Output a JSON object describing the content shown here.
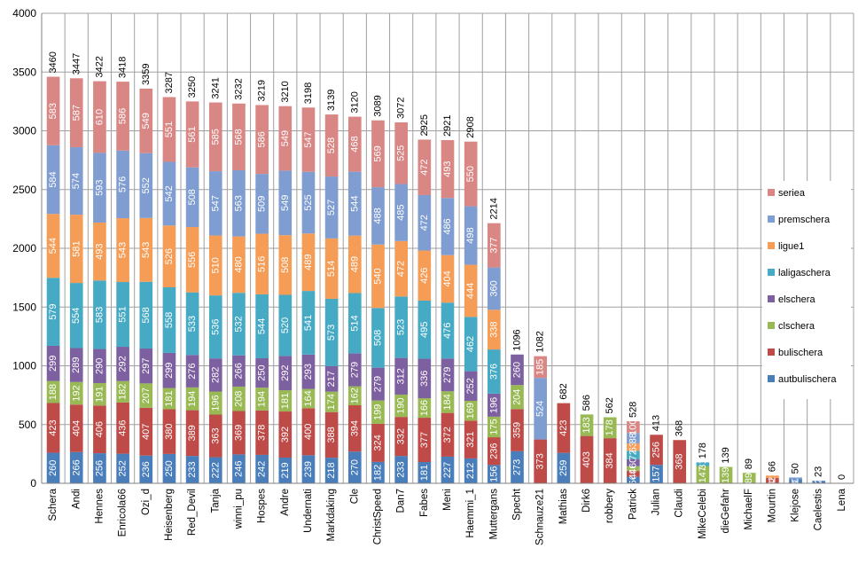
{
  "chart_data": {
    "type": "bar",
    "stacked": true,
    "ylim": [
      0,
      4000
    ],
    "yticks": [
      0,
      500,
      1000,
      1500,
      2000,
      2500,
      3000,
      3500,
      4000
    ],
    "grid": true,
    "legend_position": "right",
    "categories": [
      "Schera",
      "Andi",
      "Hennes",
      "Enricola66",
      "Ozi_d",
      "Heisenberg",
      "Red_Devil",
      "Tanja",
      "winni_pu",
      "Hospes",
      "Andre",
      "Undernati",
      "Markdaking",
      "Cle",
      "ChristSpeed",
      "Dan7",
      "Fabes",
      "Meni",
      "Haemmi_1",
      "Muttergans",
      "Specht",
      "Schnauze21",
      "Mathias",
      "Dirk6",
      "robbery",
      "Patrick",
      "Julian",
      "Claudi",
      "MikeCelebi",
      "dieGefahr",
      "MichaelF",
      "Mourtin",
      "Klejose",
      "Caelestis",
      "Lena"
    ],
    "series": [
      {
        "name": "autbulischera",
        "color": "#4a7ebb",
        "values": [
          260,
          266,
          256,
          252,
          236,
          250,
          233,
          222,
          246,
          242,
          219,
          239,
          218,
          270,
          182,
          233,
          181,
          227,
          212,
          156,
          273,
          0,
          259,
          0,
          0,
          56,
          157,
          0,
          0,
          0,
          0,
          0,
          37,
          21,
          0
        ]
      },
      {
        "name": "bulischera",
        "color": "#be4b48",
        "values": [
          423,
          404,
          406,
          436,
          407,
          380,
          389,
          363,
          369,
          378,
          392,
          400,
          388,
          394,
          324,
          332,
          377,
          372,
          321,
          236,
          359,
          373,
          423,
          403,
          384,
          49,
          256,
          368,
          0,
          0,
          0,
          45,
          0,
          0,
          0
        ]
      },
      {
        "name": "clschera",
        "color": "#98b954",
        "values": [
          188,
          192,
          191,
          182,
          207,
          181,
          194,
          196,
          208,
          194,
          181,
          164,
          174,
          162,
          199,
          190,
          166,
          184,
          169,
          175,
          204,
          0,
          0,
          183,
          178,
          40,
          0,
          0,
          147,
          139,
          89,
          0,
          0,
          0,
          0
        ]
      },
      {
        "name": "elschera",
        "color": "#7d60a0",
        "values": [
          299,
          289,
          290,
          292,
          297,
          299,
          276,
          282,
          266,
          250,
          292,
          293,
          217,
          279,
          279,
          312,
          336,
          279,
          252,
          196,
          260,
          0,
          0,
          0,
          0,
          60,
          0,
          0,
          0,
          0,
          0,
          0,
          0,
          0,
          0
        ]
      },
      {
        "name": "laligaschera",
        "color": "#46aac5",
        "values": [
          579,
          554,
          583,
          551,
          568,
          558,
          533,
          536,
          532,
          544,
          520,
          541,
          573,
          514,
          508,
          523,
          495,
          476,
          462,
          376,
          0,
          0,
          0,
          0,
          0,
          72,
          0,
          0,
          31,
          0,
          0,
          0,
          0,
          0,
          0
        ]
      },
      {
        "name": "ligue1",
        "color": "#f59d56",
        "values": [
          544,
          581,
          493,
          543,
          543,
          526,
          556,
          510,
          480,
          516,
          508,
          489,
          514,
          489,
          540,
          472,
          426,
          404,
          444,
          338,
          0,
          0,
          0,
          0,
          0,
          63,
          0,
          0,
          0,
          0,
          0,
          21,
          0,
          0,
          0
        ]
      },
      {
        "name": "premschera",
        "color": "#7f9dd1",
        "values": [
          584,
          574,
          593,
          576,
          552,
          542,
          508,
          547,
          563,
          509,
          549,
          525,
          527,
          544,
          488,
          485,
          472,
          486,
          498,
          360,
          0,
          524,
          0,
          0,
          0,
          88,
          0,
          0,
          0,
          0,
          0,
          0,
          13,
          2,
          0
        ]
      },
      {
        "name": "seriea",
        "color": "#d98785",
        "values": [
          583,
          587,
          610,
          586,
          549,
          551,
          561,
          585,
          568,
          586,
          549,
          547,
          528,
          468,
          569,
          525,
          472,
          493,
          550,
          377,
          0,
          185,
          0,
          0,
          0,
          100,
          0,
          0,
          0,
          0,
          0,
          0,
          0,
          0,
          0
        ]
      }
    ],
    "totals": [
      3460,
      3447,
      3422,
      3418,
      3359,
      3287,
      3250,
      3241,
      3232,
      3219,
      3210,
      3198,
      3139,
      3120,
      3089,
      3072,
      2925,
      2921,
      2908,
      2214,
      1096,
      1082,
      682,
      586,
      562,
      528,
      413,
      368,
      178,
      139,
      89,
      66,
      50,
      23,
      0
    ]
  }
}
